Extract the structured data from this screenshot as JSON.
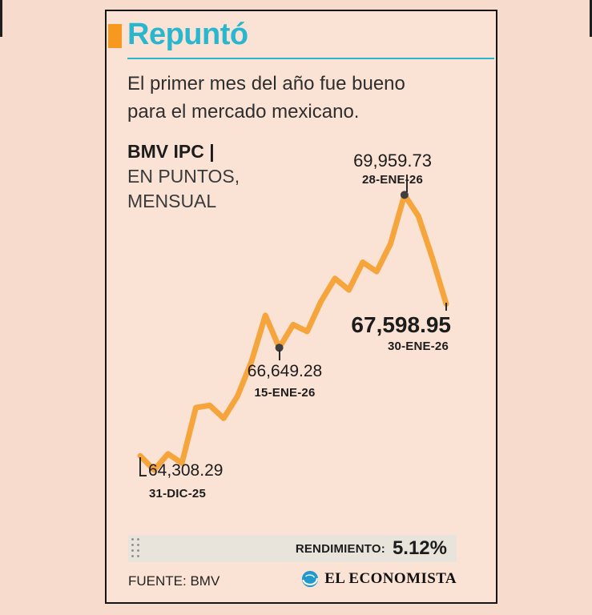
{
  "title": {
    "text": "Repuntó"
  },
  "subtitle": {
    "line1": "El primer mes del año fue bueno",
    "line2": "para el mercado mexicano."
  },
  "series_label": {
    "name": "BMV IPC",
    "sep": "|",
    "unit_line1": "EN PUNTOS,",
    "unit_line2": "MENSUAL"
  },
  "chart_data": {
    "type": "line",
    "title": "BMV IPC",
    "ylabel": "EN PUNTOS, MENSUAL",
    "x_start": "31-DIC-25",
    "x_end": "30-ENE-26",
    "ylim": [
      63600,
      70400
    ],
    "grid": false,
    "legend": "none",
    "line_color": "#F5A53C",
    "dot_color": "#3F3F3F",
    "values": [
      64308.29,
      64000,
      64350,
      64150,
      65350,
      65400,
      65120,
      65600,
      66350,
      67350,
      66649.28,
      67150,
      67000,
      67650,
      68150,
      67900,
      68500,
      68300,
      68900,
      69959.73,
      69500,
      68600,
      67598.95
    ],
    "annotations": [
      {
        "value": "64,308.29",
        "date": "31-DIC-25",
        "index": 0,
        "dot": false
      },
      {
        "value": "66,649.28",
        "date": "15-ENE-26",
        "index": 10,
        "dot": true
      },
      {
        "value": "69,959.73",
        "date": "28-ENE-26",
        "index": 19,
        "dot": true
      },
      {
        "value": "67,598.95",
        "date": "30-ENE-26",
        "index": 22,
        "dot": false
      }
    ]
  },
  "rendimiento": {
    "label": "RENDIMIENTO:",
    "value": "5.12%"
  },
  "footer": {
    "fuente": "FUENTE: BMV",
    "brand": "EL ECONOMISTA"
  },
  "colors": {
    "background": "#F7DCCD",
    "card": "#FAE3D5",
    "accent_cyan": "#29B6CF",
    "accent_orange": "#F6991E",
    "line_orange": "#F5A53C",
    "ink": "#1C1C1C",
    "muted_ink": "#3A3A3A",
    "bar_bg": "#E8E4DC",
    "brand_blue": "#2199CE",
    "dot": "#3F3F3F"
  }
}
